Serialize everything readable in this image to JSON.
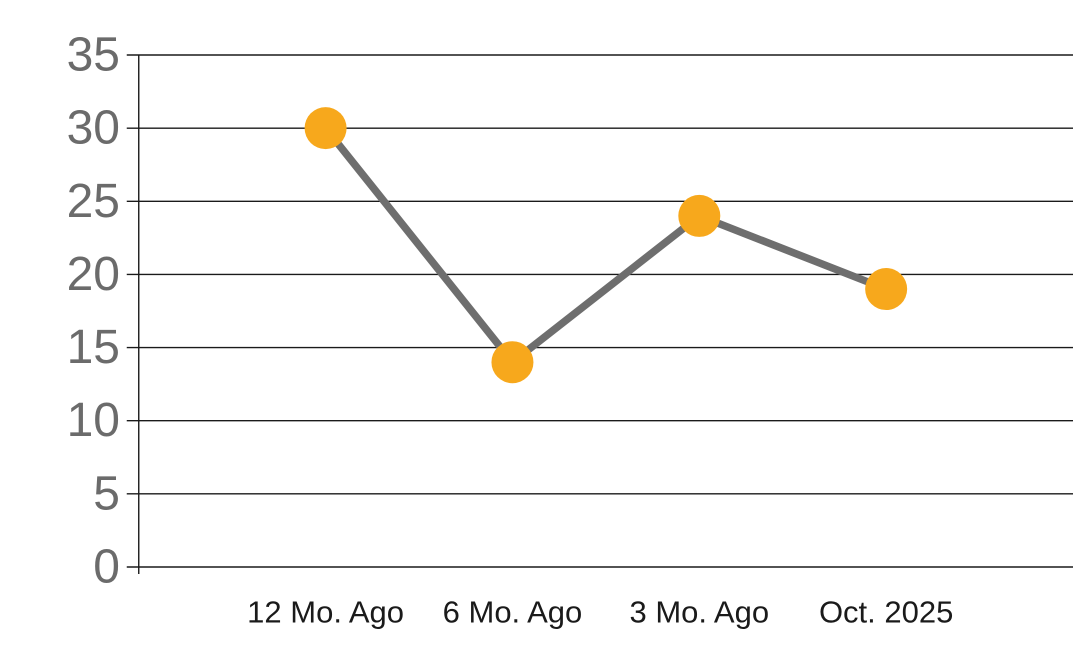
{
  "chart_data": {
    "type": "line",
    "title": "",
    "xlabel": "",
    "ylabel": "",
    "categories": [
      "12 Mo. Ago",
      "6 Mo. Ago",
      "3 Mo. Ago",
      "Oct. 2025"
    ],
    "series": [
      {
        "name": "values",
        "values": [
          30,
          14,
          24,
          19
        ]
      }
    ],
    "ylim": [
      0,
      35
    ],
    "yticks": [
      0,
      5,
      10,
      15,
      20,
      25,
      30,
      35
    ],
    "grid": true,
    "legend": false,
    "marker": "circle",
    "colors": {
      "marker": "#F7A81C",
      "line": "#6E6E6E",
      "grid": "#1A1A1A",
      "axis": "#1A1A1A",
      "y_tick_label": "#6B6B6B",
      "x_tick_label": "#1A1A1A",
      "background": "#FFFFFF"
    }
  }
}
